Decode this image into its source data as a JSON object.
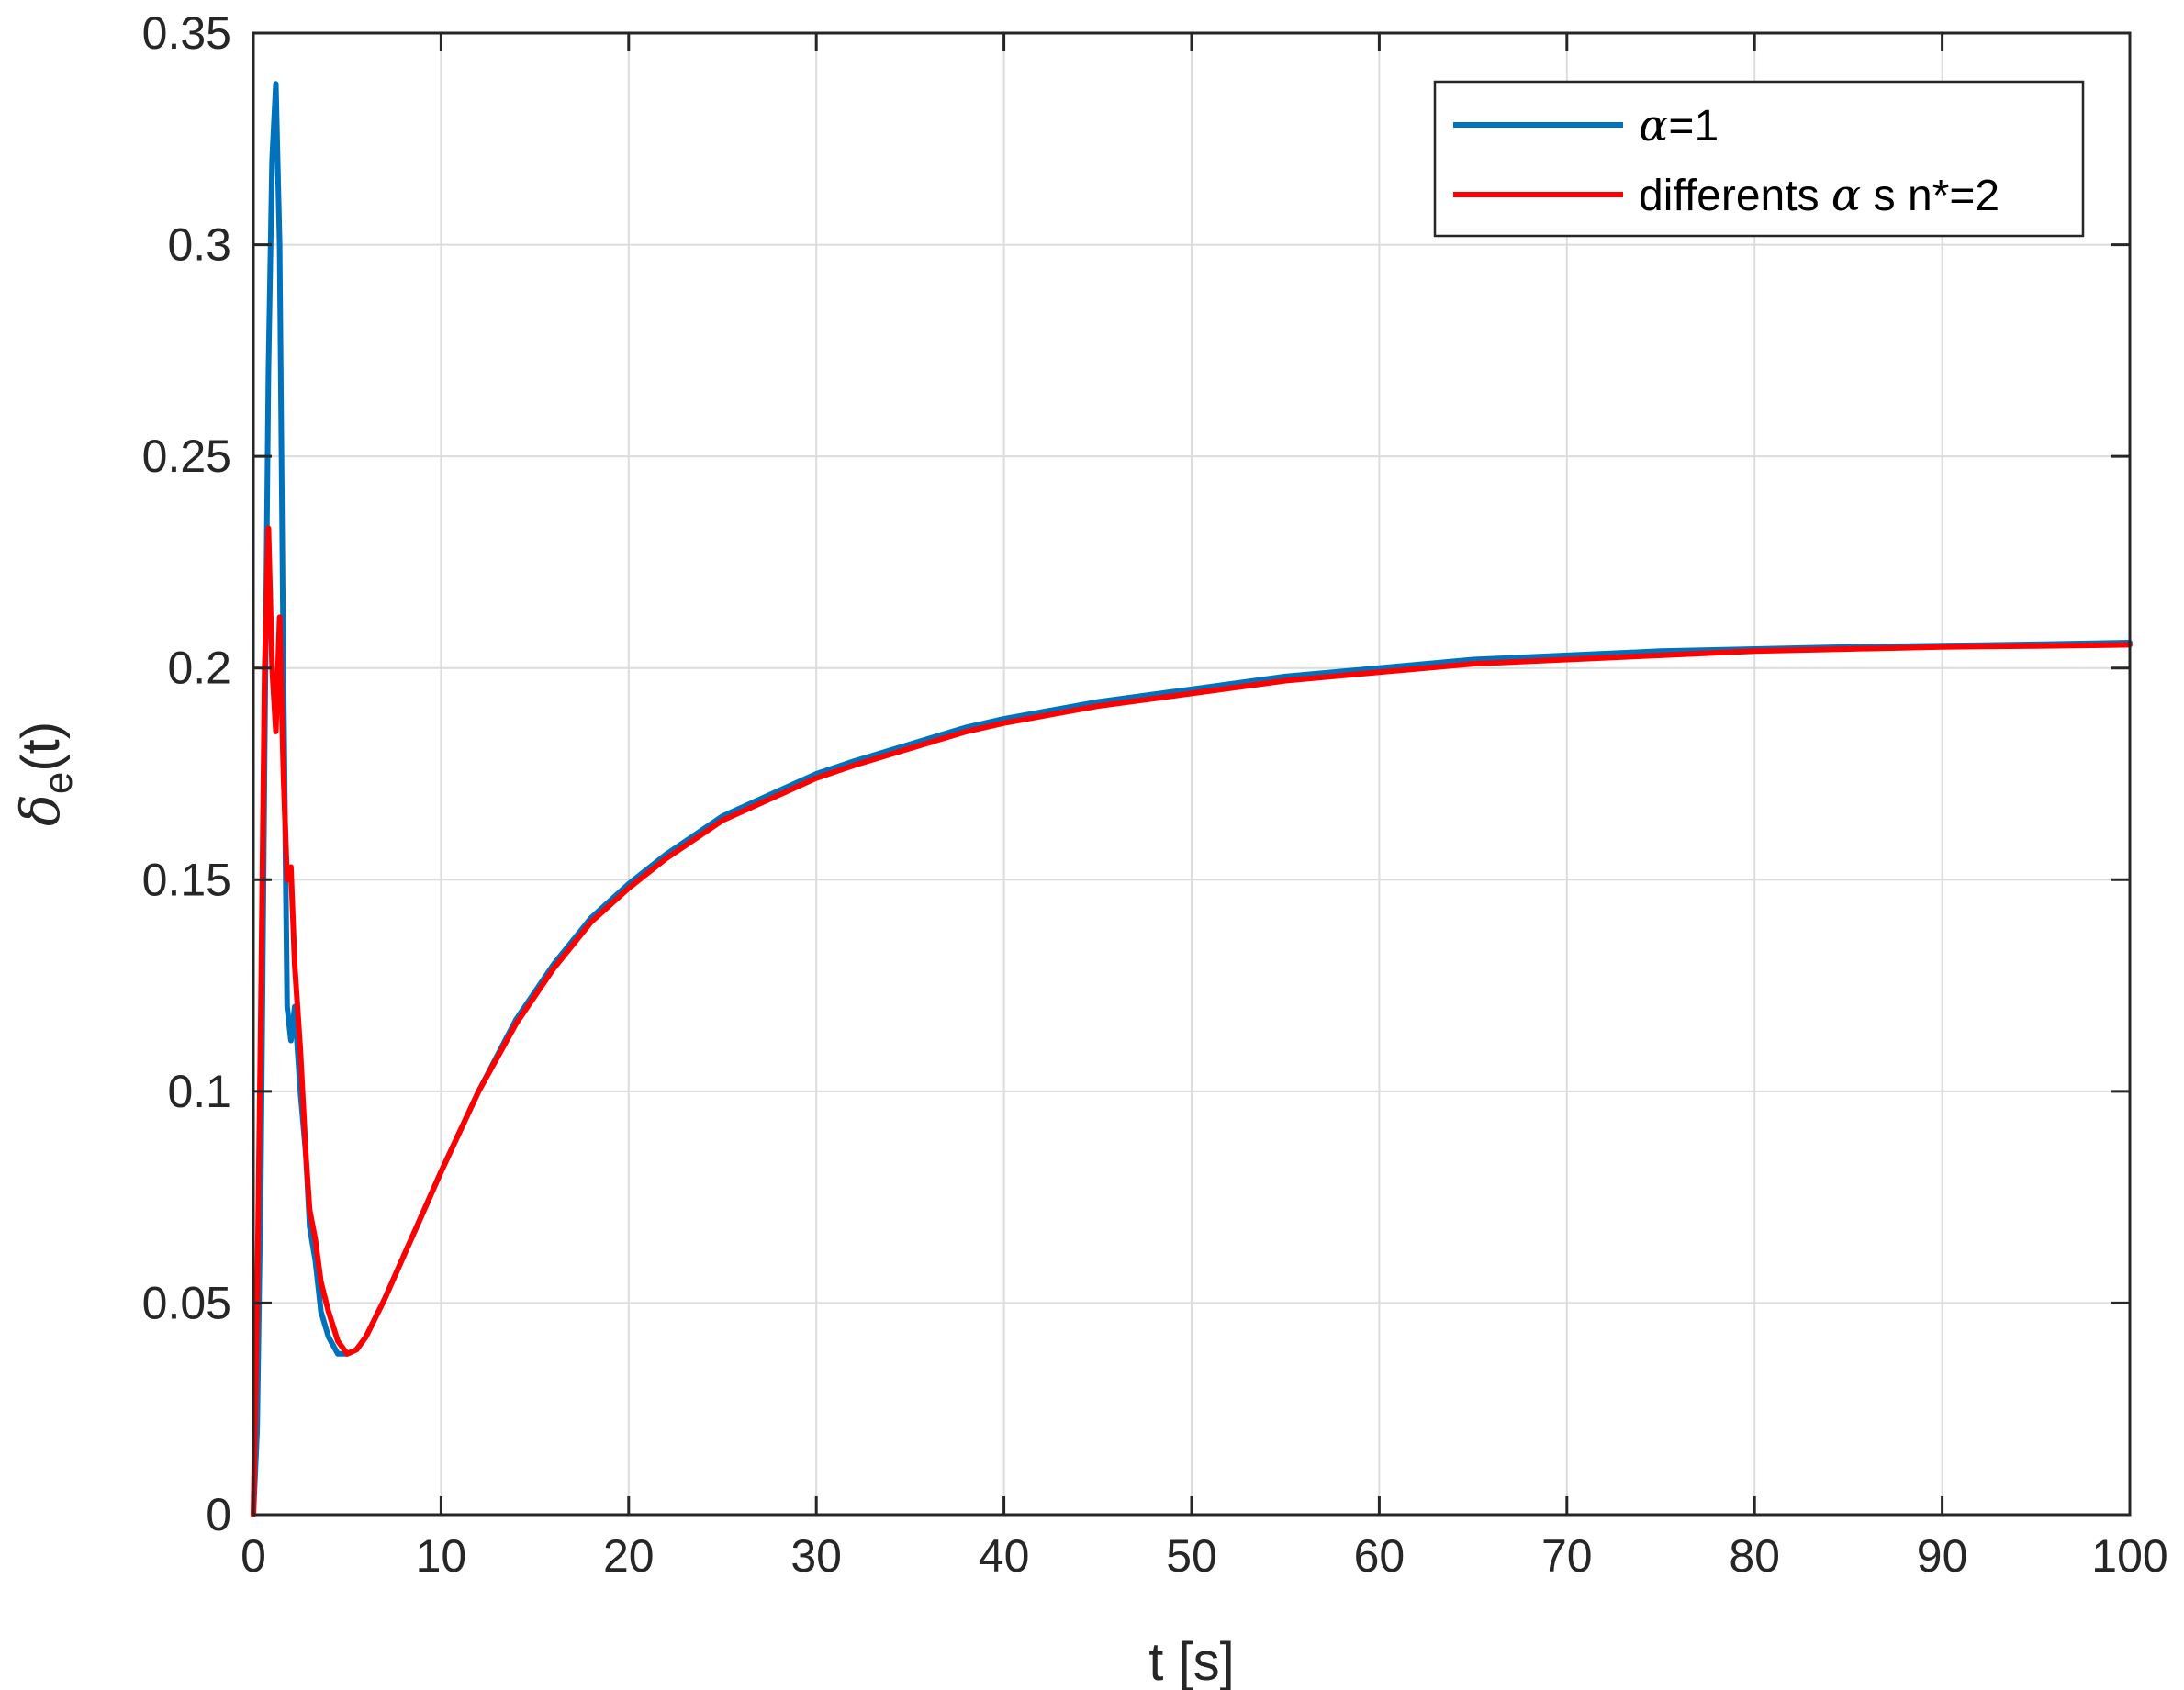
{
  "chart_data": {
    "type": "line",
    "title": "",
    "xlabel": "t [s]",
    "ylabel": {
      "symbol": "δ",
      "subscript": "e",
      "suffix": "(t)"
    },
    "xlim": [
      0,
      100
    ],
    "ylim": [
      0,
      0.35
    ],
    "xticks": [
      0,
      10,
      20,
      30,
      40,
      50,
      60,
      70,
      80,
      90,
      100
    ],
    "xtick_labels": [
      "0",
      "10",
      "20",
      "30",
      "40",
      "50",
      "60",
      "70",
      "80",
      "90",
      "100"
    ],
    "yticks": [
      0,
      0.05,
      0.1,
      0.15,
      0.2,
      0.25,
      0.3,
      0.35
    ],
    "ytick_labels": [
      "0",
      "0.05",
      "0.1",
      "0.15",
      "0.2",
      "0.25",
      "0.3",
      "0.35"
    ],
    "grid": true,
    "legend_position": "top-right",
    "series": [
      {
        "name": "α=1",
        "legend_label": {
          "symbol": "α",
          "text": "=1"
        },
        "color": "#0072BD",
        "x": [
          0,
          0.2,
          0.4,
          0.6,
          0.8,
          1.0,
          1.2,
          1.4,
          1.6,
          1.8,
          2.0,
          2.2,
          2.5,
          2.8,
          3.0,
          3.3,
          3.6,
          4.0,
          4.5,
          5.0,
          5.5,
          6,
          7,
          8,
          9,
          10,
          12,
          14,
          16,
          18,
          20,
          22,
          25,
          28,
          30,
          32,
          35,
          38,
          40,
          45,
          50,
          55,
          60,
          65,
          70,
          75,
          80,
          85,
          90,
          95,
          100
        ],
        "y": [
          0,
          0.02,
          0.08,
          0.18,
          0.27,
          0.32,
          0.338,
          0.3,
          0.2,
          0.12,
          0.112,
          0.12,
          0.1,
          0.085,
          0.068,
          0.06,
          0.048,
          0.042,
          0.038,
          0.038,
          0.039,
          0.042,
          0.051,
          0.061,
          0.071,
          0.081,
          0.1,
          0.117,
          0.13,
          0.141,
          0.149,
          0.156,
          0.165,
          0.171,
          0.175,
          0.178,
          0.182,
          0.186,
          0.188,
          0.192,
          0.195,
          0.198,
          0.2,
          0.202,
          0.203,
          0.204,
          0.2045,
          0.205,
          0.2053,
          0.2056,
          0.206
        ]
      },
      {
        "name": "differents α s n*=2",
        "legend_label": {
          "prefix": "differents ",
          "symbol": "α",
          "suffix": " s n*=2"
        },
        "color": "#FF0000",
        "x": [
          0,
          0.2,
          0.4,
          0.6,
          0.8,
          1.0,
          1.2,
          1.4,
          1.6,
          1.8,
          2.0,
          2.2,
          2.5,
          2.8,
          3.0,
          3.3,
          3.6,
          4.0,
          4.5,
          5.0,
          5.5,
          6,
          7,
          8,
          9,
          10,
          12,
          14,
          16,
          18,
          20,
          22,
          25,
          28,
          30,
          32,
          35,
          38,
          40,
          45,
          50,
          55,
          60,
          65,
          70,
          75,
          80,
          85,
          90,
          95,
          100
        ],
        "y": [
          0,
          0.05,
          0.12,
          0.2,
          0.233,
          0.2,
          0.185,
          0.212,
          0.175,
          0.15,
          0.153,
          0.13,
          0.11,
          0.085,
          0.072,
          0.065,
          0.055,
          0.048,
          0.041,
          0.038,
          0.039,
          0.042,
          0.051,
          0.061,
          0.071,
          0.081,
          0.1,
          0.116,
          0.129,
          0.14,
          0.148,
          0.155,
          0.164,
          0.17,
          0.174,
          0.177,
          0.181,
          0.185,
          0.187,
          0.191,
          0.194,
          0.197,
          0.199,
          0.201,
          0.202,
          0.203,
          0.204,
          0.2045,
          0.205,
          0.2052,
          0.2055
        ]
      }
    ]
  }
}
